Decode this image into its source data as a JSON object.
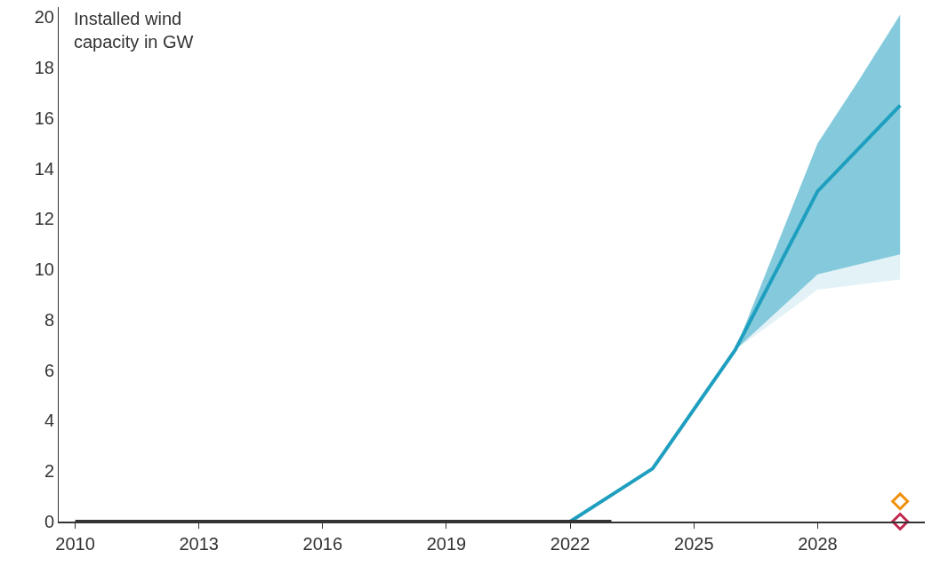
{
  "chart_data": {
    "type": "line",
    "ylabel": "Installed wind capacity in GW",
    "xlim": [
      2009.6,
      2030.6
    ],
    "xticks": [
      2010,
      2013,
      2016,
      2019,
      2022,
      2025,
      2028
    ],
    "ylim": [
      0,
      20.4
    ],
    "yticks": [
      0,
      2,
      4,
      6,
      8,
      10,
      12,
      14,
      16,
      18,
      20
    ],
    "grid": false,
    "legend": false,
    "marker": "none",
    "series": [
      {
        "type": "area",
        "color": "#e3f2f7",
        "x": [
          2026,
          2028,
          2029,
          2030
        ],
        "values": [
          null,
          null,
          null,
          null
        ],
        "lower": [
          6.8,
          9.2,
          9.4,
          9.6
        ],
        "upper": [
          6.8,
          9.8,
          10.2,
          10.6
        ]
      },
      {
        "type": "line",
        "color": "#1f9fbf",
        "x": [
          2022,
          2024,
          2026,
          2028,
          2029,
          2030
        ],
        "values": [
          0,
          2.1,
          6.8,
          13.1,
          14.8,
          16.5
        ],
        "lower": [
          0,
          2.1,
          6.8,
          9.8,
          10.2,
          10.6
        ],
        "upper": [
          0,
          2.1,
          6.8,
          15,
          17.5,
          20.1
        ]
      },
      {
        "type": "line",
        "color": "#333333",
        "x": [
          2010,
          2011,
          2012,
          2013,
          2014,
          2015,
          2016,
          2017,
          2018,
          2019,
          2020,
          2021,
          2022,
          2023
        ],
        "values": [
          0,
          0,
          0,
          0,
          0,
          0,
          0,
          0,
          0,
          0,
          0,
          0,
          0,
          0
        ]
      },
      {
        "type": "scatter",
        "color": "#f0900a",
        "marker": "diamond",
        "x": [
          2030
        ],
        "values": [
          0.8
        ]
      },
      {
        "type": "scatter",
        "color": "#c0274f",
        "marker": "diamond",
        "x": [
          2030
        ],
        "values": [
          0
        ]
      }
    ]
  }
}
